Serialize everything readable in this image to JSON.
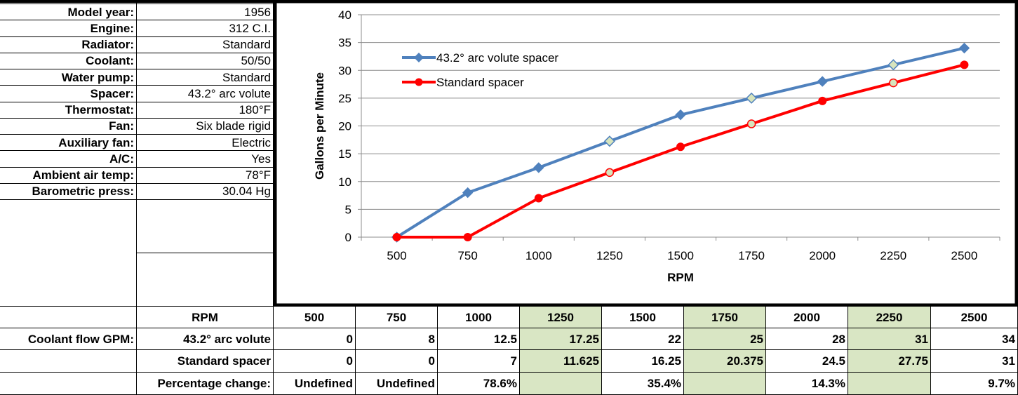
{
  "specs": [
    {
      "label": "Model year:",
      "value": "1956"
    },
    {
      "label": "Engine:",
      "value": "312 C.I."
    },
    {
      "label": "Radiator:",
      "value": "Standard"
    },
    {
      "label": "Coolant:",
      "value": "50/50"
    },
    {
      "label": "Water pump:",
      "value": "Standard"
    },
    {
      "label": "Spacer:",
      "value": "43.2° arc volute"
    },
    {
      "label": "Thermostat:",
      "value": "180°F"
    },
    {
      "label": "Fan:",
      "value": "Six blade rigid"
    },
    {
      "label": "Auxiliary fan:",
      "value": "Electric"
    },
    {
      "label": "A/C:",
      "value": "Yes"
    },
    {
      "label": "Ambient air temp:",
      "value": "78°F"
    },
    {
      "label": "Barometric press:",
      "value": "30.04 Hg"
    }
  ],
  "table": {
    "rpm_header": "RPM",
    "rpm": [
      "500",
      "750",
      "1000",
      "1250",
      "1500",
      "1750",
      "2000",
      "2250",
      "2500"
    ],
    "group_label": "Coolant flow GPM:",
    "rows": [
      {
        "label": "43.2° arc volute",
        "values": [
          "0",
          "8",
          "12.5",
          "17.25",
          "22",
          "25",
          "28",
          "31",
          "34"
        ]
      },
      {
        "label": "Standard spacer",
        "values": [
          "0",
          "0",
          "7",
          "11.625",
          "16.25",
          "20.375",
          "24.5",
          "27.75",
          "31"
        ]
      },
      {
        "label": "Percentage change:",
        "values": [
          "Undefined",
          "Undefined",
          "78.6%",
          "",
          "35.4%",
          "",
          "14.3%",
          "",
          "9.7%"
        ]
      }
    ],
    "highlight_color": "#d9e6c4"
  },
  "chart_data": {
    "type": "line",
    "categories": [
      "500",
      "750",
      "1000",
      "1250",
      "1500",
      "1750",
      "2000",
      "2250",
      "2500"
    ],
    "series": [
      {
        "name": "43.2° arc volute spacer",
        "color": "#4f81bd",
        "marker": "diamond",
        "values": [
          0,
          8,
          12.5,
          17.25,
          22,
          25,
          28,
          31,
          34
        ]
      },
      {
        "name": "Standard spacer",
        "color": "#ff0000",
        "marker": "circle",
        "values": [
          0,
          0,
          7,
          11.625,
          16.25,
          20.375,
          24.5,
          27.75,
          31
        ]
      }
    ],
    "interpolated_point_fill": "#d7e4bd",
    "xlabel": "RPM",
    "ylabel": "Gallons per Minute",
    "ylim": [
      0,
      40
    ],
    "yticks": [
      "0",
      "5",
      "10",
      "15",
      "20",
      "25",
      "30",
      "35",
      "40"
    ],
    "grid": true,
    "legend": "top-left"
  }
}
